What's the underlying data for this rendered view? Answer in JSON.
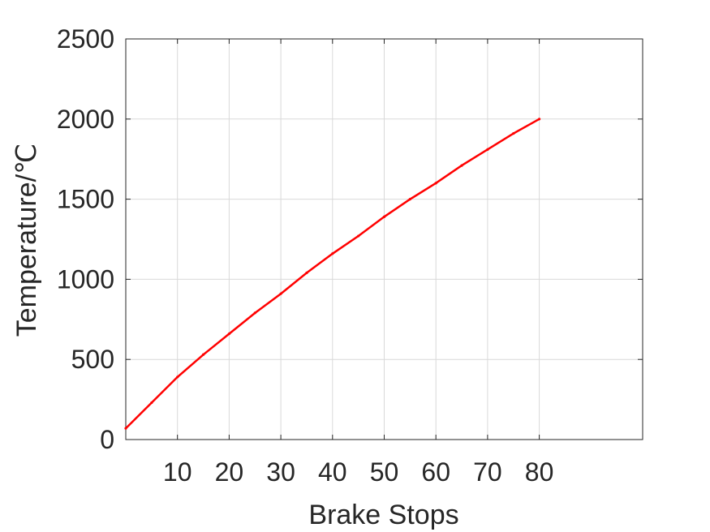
{
  "chart_data": {
    "type": "line",
    "title": "",
    "xlabel": "Brake Stops",
    "ylabel": "Temperature/℃",
    "xlim": [
      0,
      100
    ],
    "ylim": [
      0,
      2500
    ],
    "xticks": [
      10,
      20,
      30,
      40,
      50,
      60,
      70,
      80
    ],
    "yticks": [
      0,
      500,
      1000,
      1500,
      2000,
      2500
    ],
    "grid": true,
    "series": [
      {
        "color": "#ff0000",
        "x": [
          0,
          5,
          10,
          15,
          20,
          25,
          30,
          35,
          40,
          45,
          50,
          55,
          60,
          65,
          70,
          75,
          80
        ],
        "y": [
          70,
          230,
          390,
          530,
          660,
          790,
          910,
          1040,
          1160,
          1270,
          1390,
          1500,
          1600,
          1710,
          1810,
          1910,
          2000
        ]
      }
    ]
  }
}
